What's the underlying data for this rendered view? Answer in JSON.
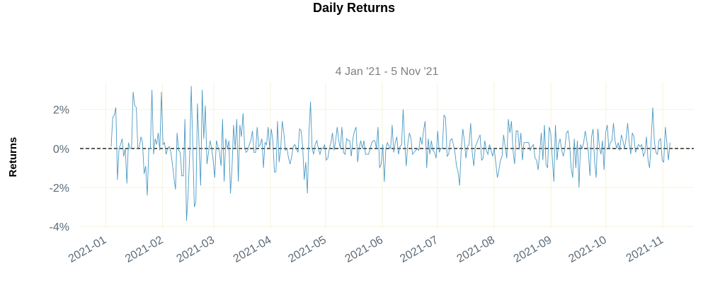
{
  "chart_data": {
    "type": "line",
    "title": "Daily Returns",
    "subtitle": "4 Jan '21 -  5 Nov '21",
    "ylabel": "Returns",
    "xlabel": "",
    "ylim": [
      -4.1,
      3.4
    ],
    "y_ticks": [
      -4,
      -2,
      0,
      2
    ],
    "y_tick_labels": [
      "-4%",
      "-2%",
      "0%",
      "2%"
    ],
    "x_ticks": [
      "2021-01",
      "2021-02",
      "2021-03",
      "2021-04",
      "2021-05",
      "2021-06",
      "2021-07",
      "2021-08",
      "2021-09",
      "2021-10",
      "2021-11"
    ],
    "x_range": [
      "2020-12-18",
      "2021-11-18"
    ],
    "grid": true,
    "reference_line": 0,
    "line_color": "#4c9ac4",
    "series": [
      {
        "start": "2021-01-04",
        "end": "2021-11-05",
        "frequency": "business-daily",
        "values": [
          0.1,
          1.6,
          1.7,
          2.1,
          -1.6,
          0.0,
          0.2,
          0.5,
          -0.4,
          0.0,
          -1.8,
          0.3,
          0.0,
          0.0,
          2.9,
          2.2,
          2.1,
          0.0,
          0.1,
          0.6,
          0.3,
          -1.3,
          -0.9,
          -2.4,
          0.0,
          0.0,
          3.0,
          -0.3,
          0.5,
          0.2,
          0.8,
          -0.1,
          2.9,
          0.2,
          0.3,
          -0.3,
          0.0,
          0.1,
          -0.2,
          -0.8,
          -1.5,
          -2.1,
          0.8,
          -0.1,
          -0.2,
          -1.4,
          -1.4,
          1.5,
          -3.7,
          -2.4,
          -0.3,
          3.2,
          0.1,
          -3.0,
          -2.7,
          2.3,
          0.1,
          -1.9,
          3.0,
          0.5,
          2.2,
          -0.8,
          -0.2,
          0.4,
          0.0,
          -0.6,
          -1.5,
          0.4,
          0.1,
          -0.2,
          -0.9,
          1.5,
          -1.7,
          0.5,
          0.0,
          0.4,
          -2.3,
          -1.0,
          1.2,
          0.0,
          1.5,
          -1.7,
          1.2,
          0.6,
          1.8,
          0.1,
          -0.2,
          -0.1,
          0.2,
          0.4,
          0.9,
          -0.2,
          -0.2,
          1.1,
          0.1,
          0.2,
          0.5,
          -1.0,
          0.3,
          0.2,
          1.1,
          0.0,
          1.0,
          0.4,
          -1.2,
          -1.2,
          1.4,
          -0.7,
          0.0,
          1.4,
          0.8,
          -0.1,
          0.0,
          -0.5,
          -0.8,
          -0.4,
          0.1,
          0.2,
          0.0,
          -0.2,
          1.0,
          0.9,
          0.1,
          -1.6,
          -0.7,
          -2.3,
          0.8,
          2.4,
          0.0,
          -0.3,
          0.2,
          0.4,
          0.0,
          -0.3,
          0.0,
          0.0,
          0.2,
          -0.6,
          -0.5,
          0.0,
          0.3,
          0.8,
          -0.1,
          0.4,
          1.1,
          0.4,
          0.0,
          1.1,
          -0.2,
          -0.3,
          0.5,
          0.4,
          0.4,
          -0.4,
          0.5,
          0.9,
          1.1,
          -0.7,
          0.0,
          0.4,
          0.0,
          0.4,
          -0.3,
          -0.3,
          -0.3,
          0.0,
          0.3,
          0.4,
          0.4,
          0.0,
          1.1,
          -1.0,
          -0.8,
          0.2,
          -1.7,
          0.0,
          0.3,
          0.1,
          0.0,
          1.2,
          -0.2,
          0.3,
          0.6,
          -0.3,
          0.1,
          0.2,
          2.0,
          0.3,
          -0.9,
          0.3,
          0.8,
          0.5,
          -0.3,
          -0.2,
          -0.1,
          0.0,
          -0.1,
          0.6,
          0.2,
          0.9,
          1.4,
          -1.0,
          0.5,
          -0.3,
          0.4,
          -0.1,
          -0.2,
          -0.5,
          0.9,
          -0.2,
          0.0,
          0.0,
          1.7,
          1.6,
          -0.4,
          -0.3,
          0.4,
          0.5,
          0.2,
          -0.2,
          -0.9,
          -1.2,
          -1.9,
          0.0,
          1.0,
          0.4,
          -0.5,
          0.1,
          0.2,
          1.3,
          -0.2,
          -0.9,
          0.1,
          0.3,
          0.5,
          0.7,
          -0.6,
          -0.5,
          0.4,
          -0.1,
          -0.3,
          0.2,
          -0.1,
          -0.4,
          0.0,
          -0.7,
          -1.5,
          -1.1,
          -0.6,
          -0.4,
          0.7,
          0.1,
          -0.5,
          1.5,
          0.8,
          1.4,
          -0.1,
          -0.8,
          0.9,
          0.9,
          0.0,
          0.8,
          -0.6,
          0.3,
          0.3,
          0.3,
          0.3,
          -0.1,
          0.1,
          0.2,
          -0.5,
          -0.6,
          -1.1,
          -0.2,
          0.8,
          -0.6,
          1.2,
          -0.8,
          -1.0,
          1.1,
          0.8,
          -0.5,
          -1.7,
          1.2,
          -0.6,
          0.2,
          0.5,
          -0.1,
          -0.4,
          0.0,
          0.8,
          0.9,
          0.3,
          -1.0,
          -1.5,
          0.5,
          -1.0,
          0.4,
          -2.0,
          0.2,
          0.0,
          0.3,
          0.9,
          0.4,
          -0.2,
          -1.4,
          0.6,
          1.0,
          -0.7,
          -1.5,
          1.0,
          0.1,
          -0.3,
          0.4,
          -1.1,
          0.8,
          1.2,
          0.0,
          0.3,
          0.4,
          1.3,
          0.4,
          0.0,
          0.3,
          -0.1,
          0.7,
          0.4,
          0.0,
          0.5,
          1.3,
          0.3,
          -0.3,
          0.8,
          0.6,
          -0.2,
          0.0,
          0.2,
          0.1,
          0.2,
          -0.4,
          -0.2,
          0.6,
          -0.6,
          -1.0,
          0.4,
          2.1,
          0.4,
          -0.2,
          -0.3,
          0.4,
          0.5,
          -0.6,
          -0.7,
          1.1,
          0.3,
          -0.6,
          0.3
        ]
      }
    ]
  }
}
